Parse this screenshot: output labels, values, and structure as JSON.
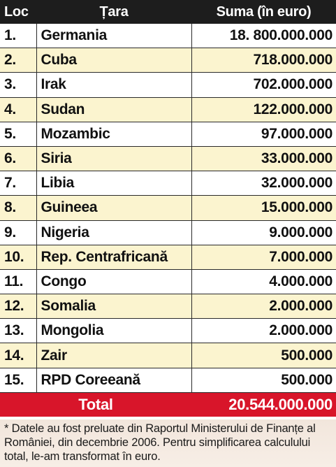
{
  "header": {
    "rank_label": "Loc",
    "country_label": "Țara",
    "amount_label": "Suma (în euro)"
  },
  "rows": [
    {
      "rank": "1.",
      "country": "Germania",
      "amount": "18. 800.000.000"
    },
    {
      "rank": "2.",
      "country": "Cuba",
      "amount": "718.000.000"
    },
    {
      "rank": "3.",
      "country": "Irak",
      "amount": "702.000.000"
    },
    {
      "rank": "4.",
      "country": "Sudan",
      "amount": "122.000.000"
    },
    {
      "rank": "5.",
      "country": "Mozambic",
      "amount": "97.000.000"
    },
    {
      "rank": "6.",
      "country": "Siria",
      "amount": "33.000.000"
    },
    {
      "rank": "7.",
      "country": "Libia",
      "amount": "32.000.000"
    },
    {
      "rank": "8.",
      "country": "Guineea",
      "amount": "15.000.000"
    },
    {
      "rank": "9.",
      "country": "Nigeria",
      "amount": "9.000.000"
    },
    {
      "rank": "10.",
      "country": "Rep. Centrafricană",
      "amount": "7.000.000"
    },
    {
      "rank": "11.",
      "country": "Congo",
      "amount": "4.000.000"
    },
    {
      "rank": "12.",
      "country": "Somalia",
      "amount": "2.000.000"
    },
    {
      "rank": "13.",
      "country": "Mongolia",
      "amount": "2.000.000"
    },
    {
      "rank": "14.",
      "country": "Zair",
      "amount": "500.000"
    },
    {
      "rank": "15.",
      "country": "RPD Coreeană",
      "amount": "500.000"
    }
  ],
  "total": {
    "label": "Total",
    "value": "20.544.000.000"
  },
  "footnote": "* Datele au fost preluate din Raportul Ministerului de Finanțe al României, din decembrie 2006. Pentru simplificarea calculului total, le-am transformat în euro.",
  "colors": {
    "header_bg": "#1d1d1d",
    "stripe_bg": "#fbf4cf",
    "total_bg": "#d8152a"
  }
}
